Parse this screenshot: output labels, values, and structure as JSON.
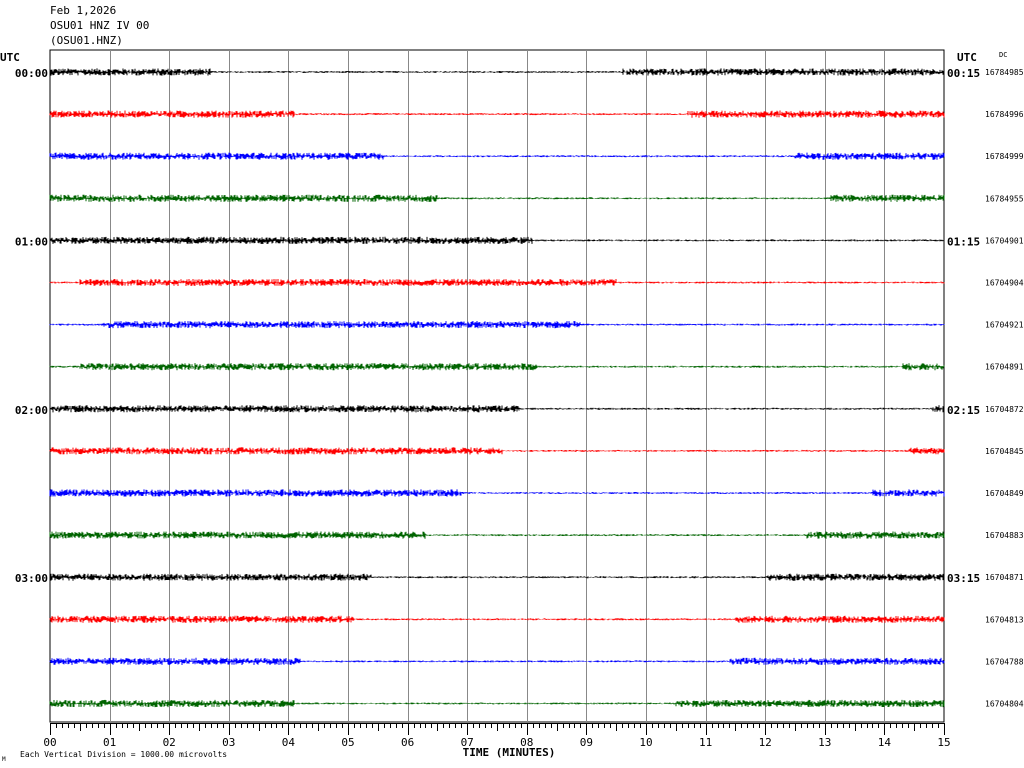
{
  "header": {
    "date": "Feb 1,2026",
    "station": "OSU01 HNZ IV 00",
    "channel": "(OSU01.HNZ)"
  },
  "labels": {
    "utc_left": "UTC",
    "utc_right": "UTC",
    "dc": "DC",
    "footer_mark": "M",
    "footer_scale": "Each Vertical Division = 1000.00 microvolts"
  },
  "chart_data": {
    "type": "line",
    "title": "OSU01 HNZ IV 00",
    "xlabel": "TIME (MINUTES)",
    "xlim": [
      0,
      15
    ],
    "x_ticks": [
      "00",
      "01",
      "02",
      "03",
      "04",
      "05",
      "06",
      "07",
      "08",
      "09",
      "10",
      "11",
      "12",
      "13",
      "14",
      "15"
    ],
    "left_time_labels": [
      "00:00",
      "01:00",
      "02:00",
      "03:00"
    ],
    "right_time_labels": [
      "00:15",
      "01:15",
      "02:15",
      "03:15"
    ],
    "trace_colors": [
      "#000000",
      "#ff0000",
      "#0000ff",
      "#006400"
    ],
    "dc_offsets": [
      "16784985",
      "16784996",
      "16784999",
      "16784955",
      "16704901",
      "16704904",
      "16704921",
      "16704891",
      "16704872",
      "16704845",
      "16704849",
      "16704883",
      "16704871",
      "16704813",
      "16704788",
      "16704804"
    ],
    "active_segments_minutes": [
      [
        [
          0,
          2.7
        ],
        [
          9.6,
          15
        ]
      ],
      [
        [
          0,
          4.1
        ],
        [
          10.7,
          15
        ]
      ],
      [
        [
          0,
          5.6
        ],
        [
          12.5,
          15
        ]
      ],
      [
        [
          0,
          6.5
        ],
        [
          13.1,
          15
        ]
      ],
      [
        [
          0,
          8.1
        ]
      ],
      [
        [
          0.5,
          9.5
        ]
      ],
      [
        [
          0.9,
          8.9
        ]
      ],
      [
        [
          0.5,
          8.2
        ],
        [
          14.3,
          15
        ]
      ],
      [
        [
          0,
          7.9
        ],
        [
          14.8,
          15
        ]
      ],
      [
        [
          0,
          7.6
        ],
        [
          14.4,
          15
        ]
      ],
      [
        [
          0,
          6.9
        ],
        [
          13.8,
          15
        ]
      ],
      [
        [
          0,
          6.3
        ],
        [
          12.7,
          15
        ]
      ],
      [
        [
          0,
          5.4
        ],
        [
          12.0,
          15
        ]
      ],
      [
        [
          0,
          5.1
        ],
        [
          11.5,
          15
        ]
      ],
      [
        [
          0,
          4.2
        ],
        [
          11.4,
          15
        ]
      ],
      [
        [
          0,
          4.1
        ],
        [
          10.5,
          15
        ]
      ]
    ]
  }
}
